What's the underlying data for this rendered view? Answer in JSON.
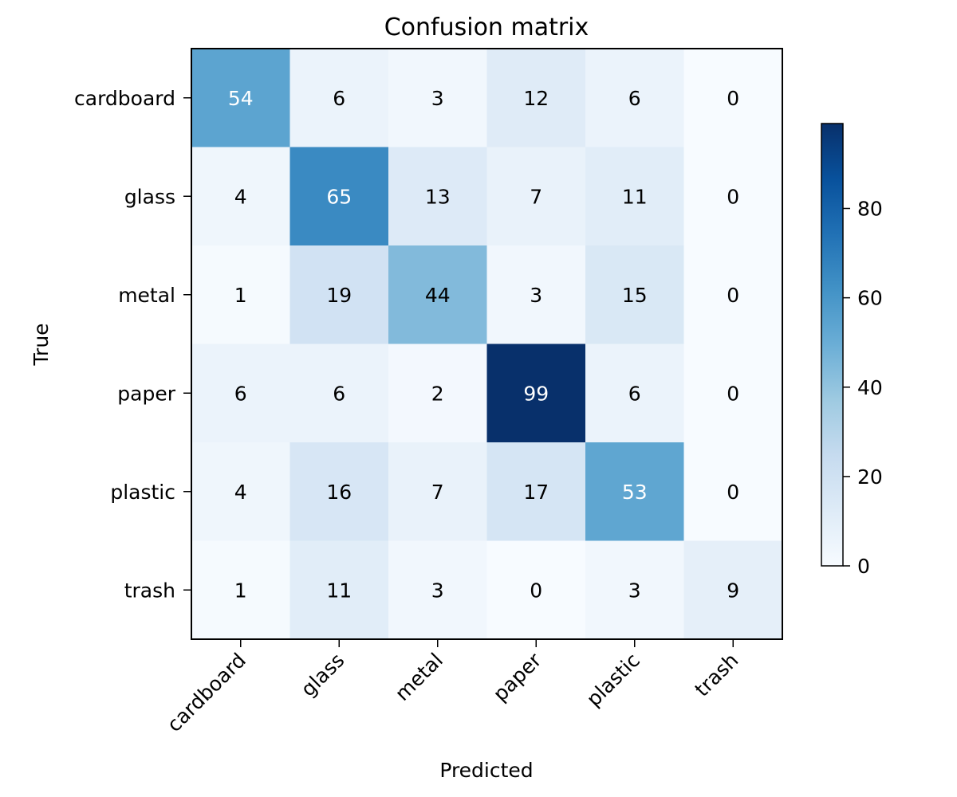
{
  "chart_data": {
    "type": "heatmap",
    "title": "Confusion matrix",
    "xlabel": "Predicted",
    "ylabel": "True",
    "x_categories": [
      "cardboard",
      "glass",
      "metal",
      "paper",
      "plastic",
      "trash"
    ],
    "y_categories": [
      "cardboard",
      "glass",
      "metal",
      "paper",
      "plastic",
      "trash"
    ],
    "values": [
      [
        54,
        6,
        3,
        12,
        6,
        0
      ],
      [
        4,
        65,
        13,
        7,
        11,
        0
      ],
      [
        1,
        19,
        44,
        3,
        15,
        0
      ],
      [
        6,
        6,
        2,
        99,
        6,
        0
      ],
      [
        4,
        16,
        7,
        17,
        53,
        0
      ],
      [
        1,
        11,
        3,
        0,
        3,
        9
      ]
    ],
    "colormap": "Blues",
    "value_range": [
      0,
      99
    ],
    "colorbar": {
      "ticks": [
        0,
        20,
        40,
        60,
        80
      ],
      "tick_labels": [
        "0",
        "20",
        "40",
        "60",
        "80"
      ]
    },
    "text_color_threshold": 49.5,
    "text_colors": {
      "dark": "#000000",
      "light": "#ffffff"
    }
  }
}
